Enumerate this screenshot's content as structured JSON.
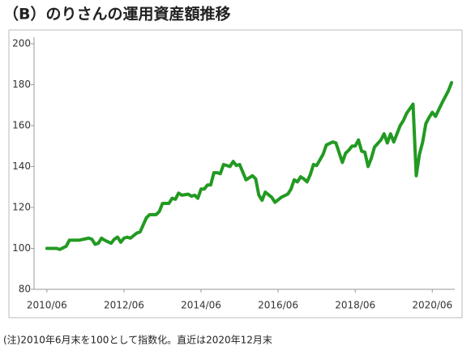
{
  "chart_data": {
    "type": "line",
    "title": "（B）のりさんの運用資産額推移",
    "note": "(注)2010年6月末を100として指数化。直近は2020年12月末",
    "color": "#229a22",
    "x": [
      "2010/06",
      "2010/09",
      "2010/10",
      "2010/12",
      "2011/01",
      "2011/04",
      "2011/07",
      "2011/08",
      "2011/09",
      "2011/10",
      "2011/11",
      "2011/12",
      "2012/02",
      "2012/03",
      "2012/04",
      "2012/05",
      "2012/06",
      "2012/07",
      "2012/08",
      "2012/10",
      "2012/11",
      "2012/12",
      "2013/01",
      "2013/02",
      "2013/04",
      "2013/05",
      "2013/06",
      "2013/08",
      "2013/09",
      "2013/10",
      "2013/11",
      "2013/12",
      "2014/02",
      "2014/03",
      "2014/04",
      "2014/05",
      "2014/06",
      "2014/07",
      "2014/08",
      "2014/09",
      "2014/10",
      "2014/11",
      "2014/12",
      "2015/01",
      "2015/03",
      "2015/04",
      "2015/05",
      "2015/06",
      "2015/08",
      "2015/10",
      "2015/11",
      "2015/12",
      "2016/01",
      "2016/02",
      "2016/04",
      "2016/05",
      "2016/07",
      "2016/09",
      "2016/10",
      "2016/11",
      "2016/12",
      "2017/01",
      "2017/02",
      "2017/03",
      "2017/04",
      "2017/05",
      "2017/06",
      "2017/08",
      "2017/09",
      "2017/11",
      "2017/12",
      "2018/02",
      "2018/03",
      "2018/04",
      "2018/05",
      "2018/06",
      "2018/07",
      "2018/08",
      "2018/09",
      "2018/10",
      "2018/11",
      "2018/12",
      "2019/02",
      "2019/03",
      "2019/04",
      "2019/05",
      "2019/06",
      "2019/07",
      "2019/08",
      "2019/09",
      "2019/10",
      "2019/12",
      "2020/01",
      "2020/02",
      "2020/03",
      "2020/04",
      "2020/05",
      "2020/06",
      "2020/07",
      "2020/09",
      "2020/11",
      "2020/12"
    ],
    "values": [
      100,
      100,
      99.5,
      101,
      104,
      104,
      105,
      104.5,
      102,
      102.5,
      105,
      104,
      102.5,
      104.5,
      105.5,
      103,
      105,
      105.5,
      105,
      107.5,
      108,
      111.5,
      115,
      116.5,
      116.5,
      118,
      122,
      122,
      124.5,
      124,
      127,
      126,
      126.5,
      125.5,
      126,
      124.5,
      129,
      129,
      131,
      131,
      137,
      137,
      136.5,
      141,
      140,
      142.5,
      140.5,
      141,
      133.5,
      135.5,
      134,
      126,
      123.5,
      127.5,
      125,
      122.5,
      125,
      126.5,
      129,
      133.5,
      132.5,
      135,
      134,
      132.5,
      136,
      141,
      140.5,
      146,
      150.5,
      152,
      151.5,
      142,
      146.5,
      148,
      150,
      150,
      153,
      147.5,
      147,
      140,
      144,
      149.5,
      153,
      156,
      151.5,
      156,
      152,
      156,
      160,
      162.5,
      166,
      170.5,
      135.5,
      146,
      152,
      161,
      164,
      166.5,
      164.5,
      171,
      177,
      181
    ],
    "xlim": [
      "2010/02",
      "2021/01"
    ],
    "xticks": [
      "2010/06",
      "2012/06",
      "2014/06",
      "2016/06",
      "2018/06",
      "2020/06"
    ],
    "ylim": [
      80,
      200
    ],
    "yticks": [
      80,
      100,
      120,
      140,
      160,
      180,
      200
    ]
  }
}
